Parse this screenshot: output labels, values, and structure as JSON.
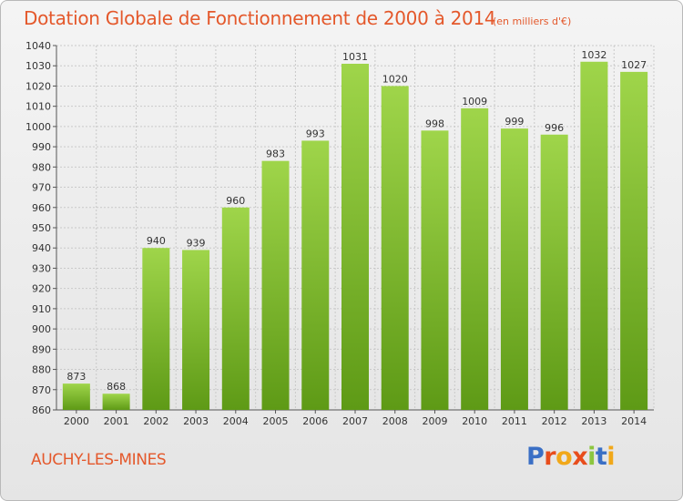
{
  "header": {
    "title": "Dotation Globale de Fonctionnement de 2000 à 2014",
    "unit": "(en milliers d'€)"
  },
  "footer": {
    "commune": "AUCHY-LES-MINES",
    "brand": "Proxiti"
  },
  "colors": {
    "title": "#e4582b",
    "bar_light": "#9fd54a",
    "bar_dark": "#5e9a16",
    "grid": "#c9c9c9",
    "brand_letters": [
      "#3a6fc5",
      "#e84d1c",
      "#f1a81a",
      "#e84d1c",
      "#8cc63f",
      "#3a6fc5",
      "#f1a81a"
    ]
  },
  "chart_data": {
    "type": "bar",
    "title": "Dotation Globale de Fonctionnement de 2000 à 2014",
    "subtitle": "(en milliers d'€)",
    "xlabel": "",
    "ylabel": "",
    "categories": [
      "2000",
      "2001",
      "2002",
      "2003",
      "2004",
      "2005",
      "2006",
      "2007",
      "2008",
      "2009",
      "2010",
      "2011",
      "2012",
      "2013",
      "2014"
    ],
    "values": [
      873,
      868,
      940,
      939,
      960,
      983,
      993,
      1031,
      1020,
      998,
      1009,
      999,
      996,
      1032,
      1027
    ],
    "ylim": [
      860,
      1040
    ],
    "yticks": [
      860,
      870,
      880,
      890,
      900,
      910,
      920,
      930,
      940,
      950,
      960,
      970,
      980,
      990,
      1000,
      1010,
      1020,
      1030,
      1040
    ],
    "grid": true,
    "data_labels": true
  }
}
